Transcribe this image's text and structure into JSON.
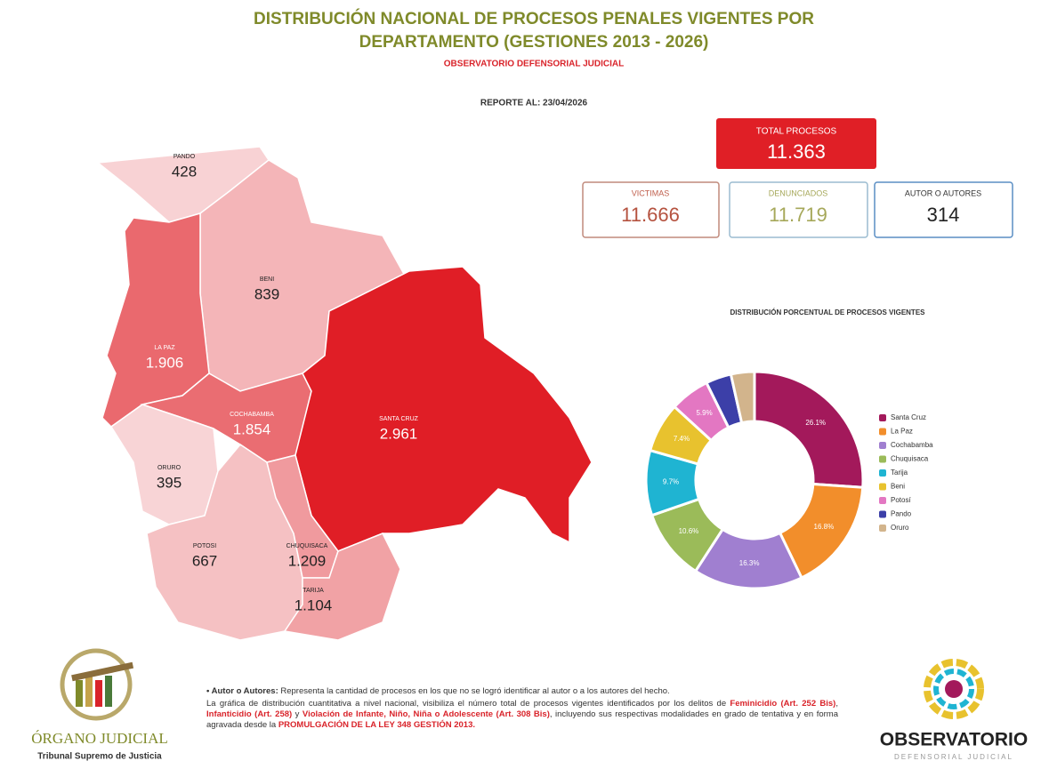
{
  "header": {
    "title_lines": [
      "DISTRIBUCIÓN NACIONAL DE PROCESOS PENALES VIGENTES POR",
      "DEPARTAMENTO (GESTIONES 2013 - 2026)"
    ],
    "subtitle": "OBSERVATORIO DEFENSORIAL JUDICIAL",
    "report_date": "REPORTE AL: 23/04/2026"
  },
  "stats": {
    "total": {
      "label": "TOTAL PROCESOS",
      "value": "11.363"
    },
    "cards": [
      {
        "label": "VICTIMAS",
        "value": "11.666"
      },
      {
        "label": "DENUNCIADOS",
        "value": "11.719"
      },
      {
        "label": "AUTOR O AUTORES",
        "value": "314"
      }
    ]
  },
  "map": {
    "regions": [
      {
        "name": "PANDO",
        "value": 428,
        "label": "428"
      },
      {
        "name": "BENI",
        "value": 839,
        "label": "839"
      },
      {
        "name": "LA PAZ",
        "value": 1906,
        "label": "1.906"
      },
      {
        "name": "COCHABAMBA",
        "value": 1854,
        "label": "1.854"
      },
      {
        "name": "SANTA CRUZ",
        "value": 2961,
        "label": "2.961"
      },
      {
        "name": "ORURO",
        "value": 395,
        "label": "395"
      },
      {
        "name": "POTOSI",
        "value": 667,
        "label": "667"
      },
      {
        "name": "CHUQUISACA",
        "value": 1209,
        "label": "1.209"
      },
      {
        "name": "TARIJA",
        "value": 1104,
        "label": "1.104"
      }
    ]
  },
  "chart_data": {
    "type": "donut",
    "title": "DISTRIBUCIÓN PORCENTUAL DE PROCESOS VIGENTES",
    "categories": [
      "Santa Cruz",
      "La Paz",
      "Cochabamba",
      "Chuquisaca",
      "Tarija",
      "Beni",
      "Potosí",
      "Pando",
      "Oruro"
    ],
    "values": [
      26.1,
      16.8,
      16.3,
      10.6,
      9.7,
      7.4,
      5.9,
      3.8,
      3.5
    ],
    "value_labels": [
      "26.1%",
      "16.8%",
      "16.3%",
      "10.6%",
      "9.7%",
      "7.4%",
      "5.9%",
      null,
      null
    ],
    "colors": [
      "#a3195b",
      "#f28e2b",
      "#a07fd0",
      "#9bbb59",
      "#1fb4d2",
      "#e8c22e",
      "#e377c2",
      "#3c3fa8",
      "#d2b48c"
    ],
    "legend": "right"
  },
  "notes": [
    [
      {
        "text": "• Autor o Autores:",
        "highlight": false,
        "bold": true
      },
      {
        "text": " Representa la cantidad de procesos en los que no se logró identificar al autor o a los autores del hecho.",
        "highlight": false,
        "bold": false
      }
    ],
    [
      {
        "text": "La gráfica de distribución cuantitativa a nivel nacional, visibiliza el número total de procesos vigentes identificados por los delitos de ",
        "highlight": false,
        "bold": false
      },
      {
        "text": "Feminicidio (Art. 252 Bis)",
        "highlight": true,
        "bold": true
      },
      {
        "text": ", ",
        "highlight": false,
        "bold": false
      },
      {
        "text": "Infanticidio (Art. 258)",
        "highlight": true,
        "bold": true
      },
      {
        "text": " y ",
        "highlight": false,
        "bold": false
      },
      {
        "text": "Violación de Infante, Niño, Niña o Adolescente (Art. 308 Bis)",
        "highlight": true,
        "bold": true
      },
      {
        "text": ", incluyendo sus respectivas modalidades en grado de tentativa y en forma agravada desde la ",
        "highlight": false,
        "bold": false
      },
      {
        "text": "PROMULGACIÓN DE LA LEY 348 GESTIÓN 2013.",
        "highlight": true,
        "bold": true
      }
    ]
  ],
  "logos": {
    "left": {
      "name": "ÓRGANO JUDICIAL",
      "sub": "Tribunal Supremo de Justicia"
    },
    "right": {
      "name": "OBSERVATORIO",
      "sub": "DEFENSORIAL JUDICIAL"
    }
  }
}
